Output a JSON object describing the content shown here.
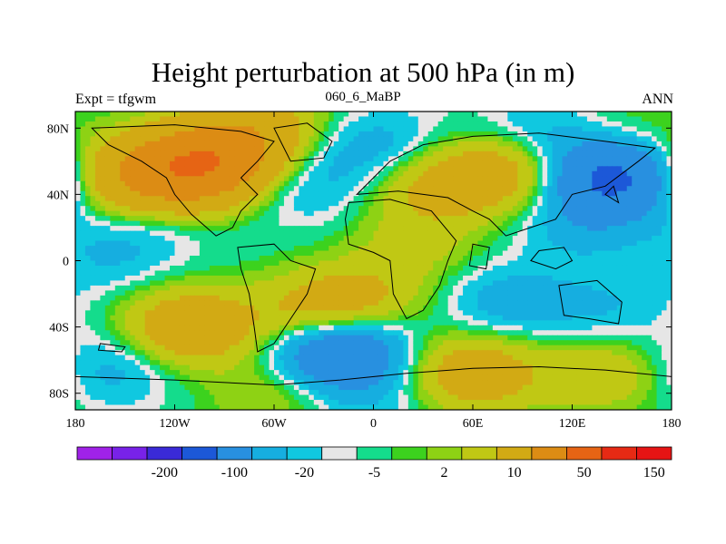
{
  "chart_data": {
    "type": "heatmap",
    "title": "Height perturbation at 500 hPa (in m)",
    "left_string": "Expt = tfgwm",
    "center_string": "060_6_MaBP",
    "right_string": "ANN",
    "x_tick_labels": [
      "180",
      "120W",
      "60W",
      "0",
      "60E",
      "120E",
      "180"
    ],
    "x_tick_values": [
      -180,
      -120,
      -60,
      0,
      60,
      120,
      180
    ],
    "y_tick_labels": [
      "80N",
      "40N",
      "0",
      "40S",
      "80S"
    ],
    "y_tick_values": [
      80,
      40,
      0,
      -40,
      -80
    ],
    "xlim": [
      -180,
      180
    ],
    "ylim": [
      -90,
      90
    ],
    "colorbar_labels": [
      "-200",
      "-100",
      "-20",
      "-5",
      "2",
      "10",
      "50",
      "150"
    ],
    "colorbar_colors": [
      "#a022e8",
      "#7822e8",
      "#3a2ad8",
      "#1c58d8",
      "#2890e0",
      "#16aee0",
      "#10c8e0",
      "#e6e6e6",
      "#14dc8c",
      "#3cd21e",
      "#8ed214",
      "#c0c814",
      "#d2aa14",
      "#dc8c14",
      "#e66414",
      "#e62a14",
      "#e61414"
    ],
    "colorbar_label_positions": [
      2.5,
      4.5,
      6.5,
      8.5,
      10.5,
      12.5,
      14.5,
      16.5
    ],
    "field_features": [
      {
        "lon": -110,
        "lat": 55,
        "value": 70
      },
      {
        "lon": -150,
        "lat": 50,
        "value": 35
      },
      {
        "lon": -90,
        "lat": 65,
        "value": 40
      },
      {
        "lon": -60,
        "lat": 80,
        "value": 25
      },
      {
        "lon": -45,
        "lat": 45,
        "value": -12
      },
      {
        "lon": -30,
        "lat": 70,
        "value": -10
      },
      {
        "lon": 10,
        "lat": 68,
        "value": -12
      },
      {
        "lon": 40,
        "lat": 45,
        "value": 25
      },
      {
        "lon": 80,
        "lat": 55,
        "value": 30
      },
      {
        "lon": 25,
        "lat": 10,
        "value": 12
      },
      {
        "lon": 0,
        "lat": -20,
        "value": 12
      },
      {
        "lon": 100,
        "lat": 75,
        "value": -15
      },
      {
        "lon": 145,
        "lat": 50,
        "value": -60
      },
      {
        "lon": 125,
        "lat": 20,
        "value": -12
      },
      {
        "lon": -140,
        "lat": 20,
        "value": -8
      },
      {
        "lon": -160,
        "lat": 0,
        "value": -8
      },
      {
        "lon": 150,
        "lat": 78,
        "value": 8
      },
      {
        "lon": 80,
        "lat": -25,
        "value": -15
      },
      {
        "lon": 140,
        "lat": -30,
        "value": -10
      },
      {
        "lon": -30,
        "lat": -30,
        "value": 30
      },
      {
        "lon": -110,
        "lat": -40,
        "value": 40
      },
      {
        "lon": -20,
        "lat": -55,
        "value": -50
      },
      {
        "lon": 60,
        "lat": -68,
        "value": 35
      },
      {
        "lon": 140,
        "lat": -68,
        "value": 20
      },
      {
        "lon": -160,
        "lat": -65,
        "value": -15
      },
      {
        "lon": -60,
        "lat": -80,
        "value": 12
      },
      {
        "lon": 0,
        "lat": -85,
        "value": -8
      }
    ]
  }
}
